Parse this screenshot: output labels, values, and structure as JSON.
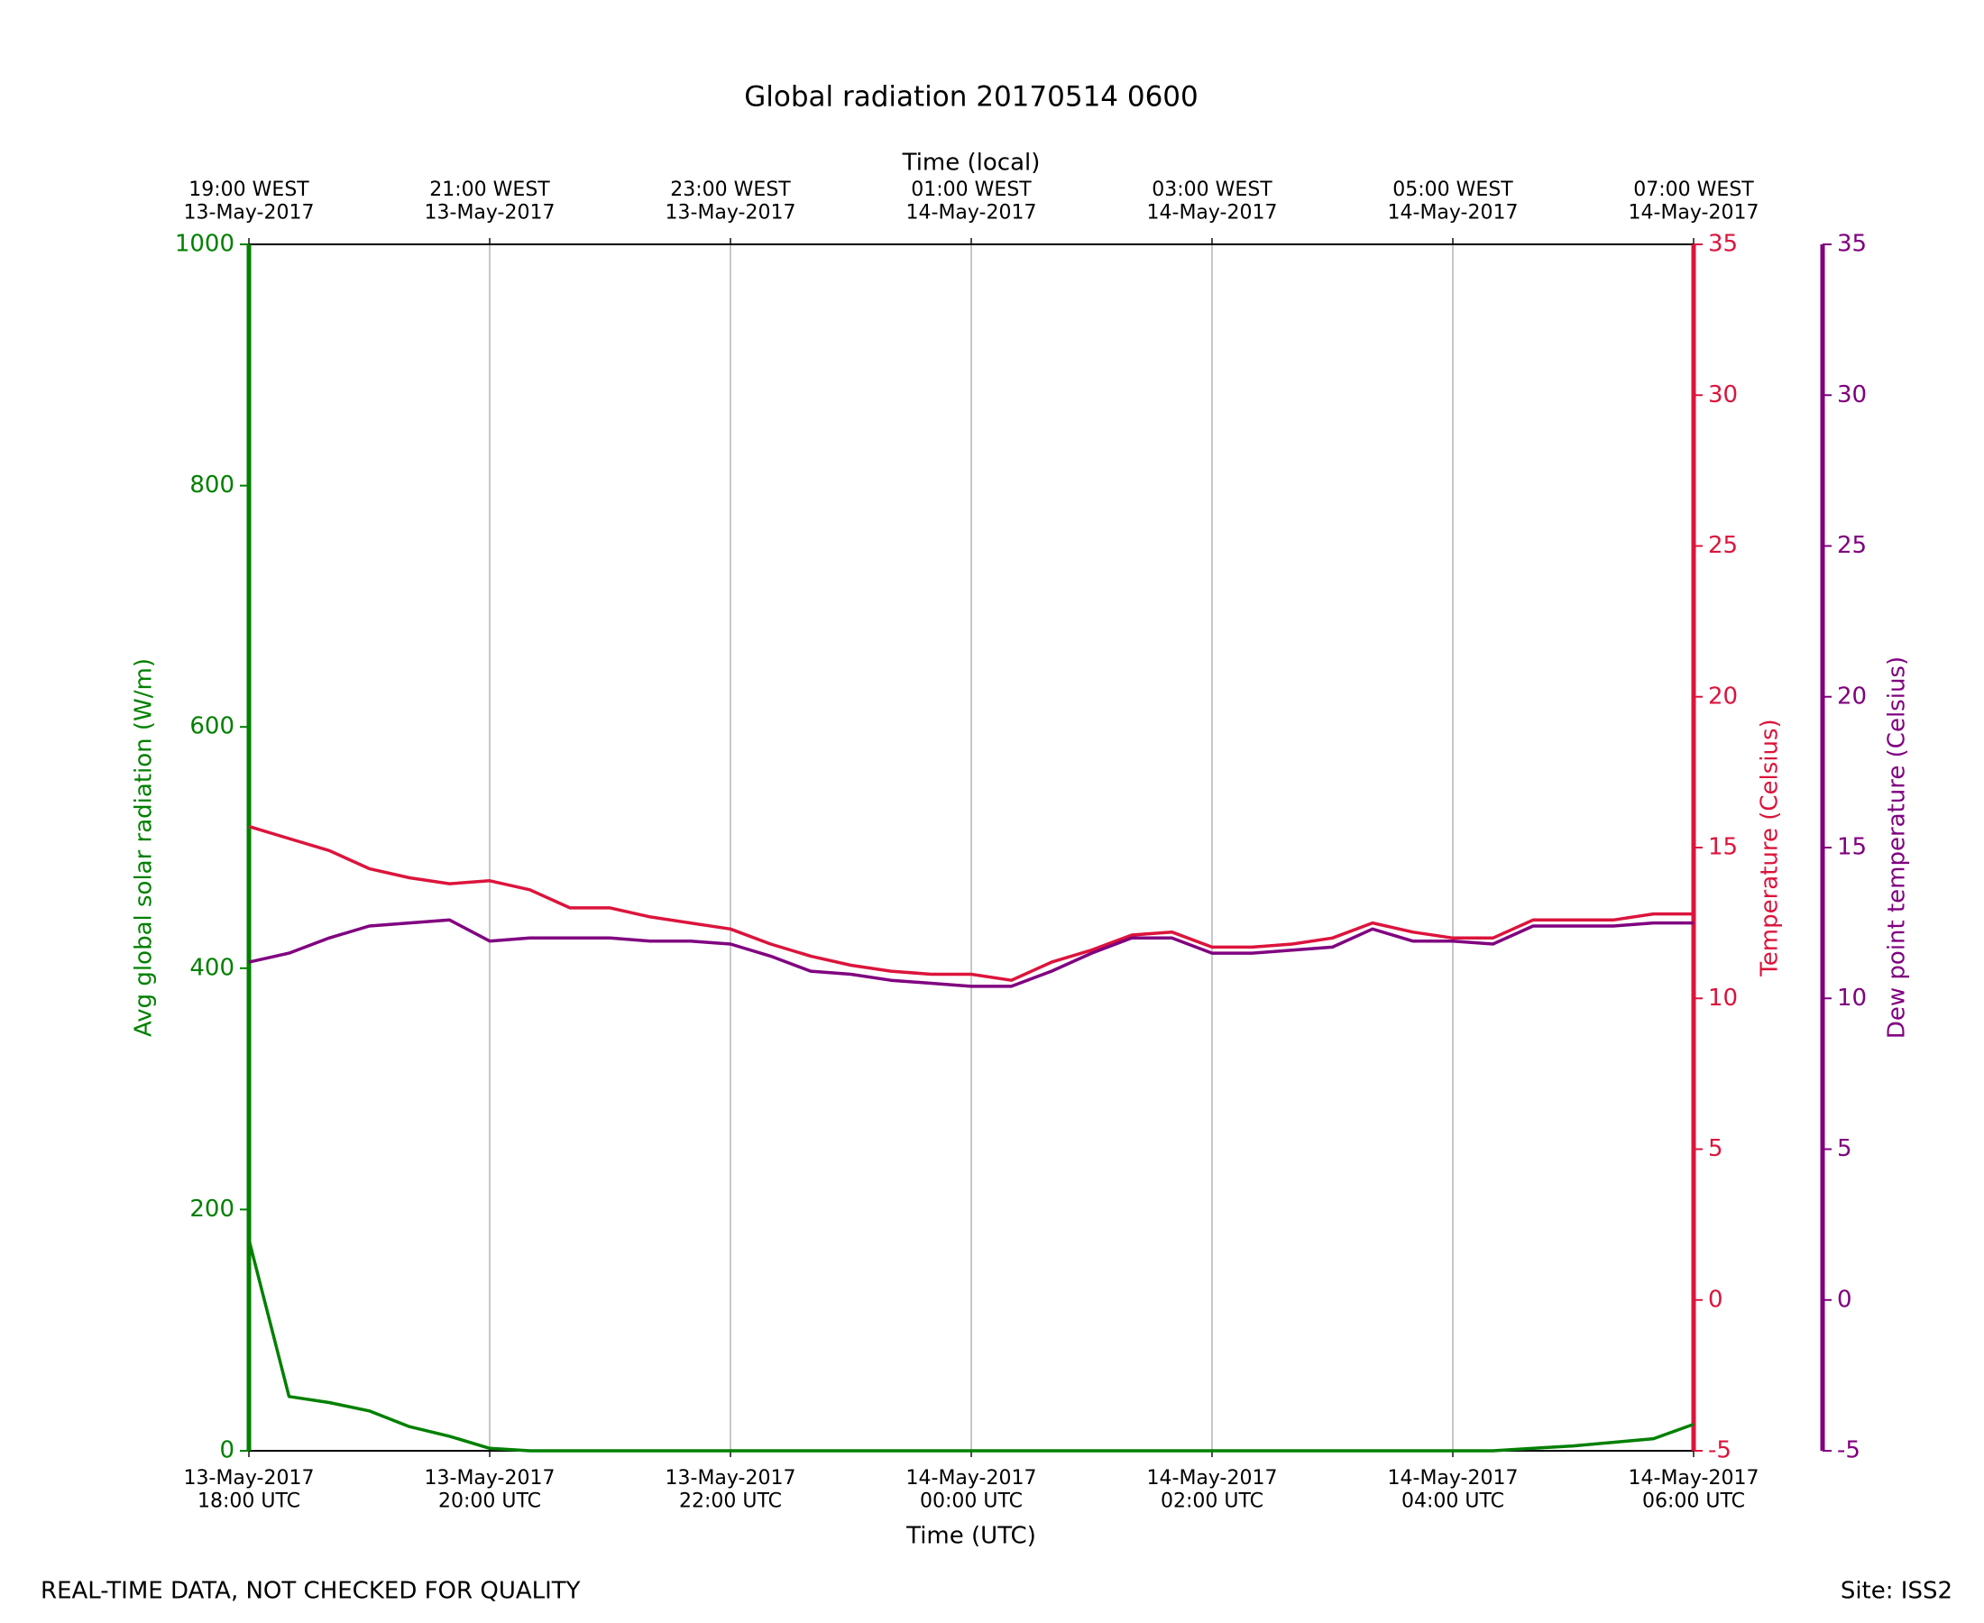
{
  "chart_data": {
    "type": "line",
    "title": "Global radiation 20170514 0600",
    "xlabel": "Time (UTC)",
    "x2label": "Time (local)",
    "ylabel": "Avg global solar radiation (W/m)",
    "y2label": "Temperature (Celsius)",
    "y3label": "Dew point temperature (Celsius)",
    "footer_left": "REAL-TIME DATA, NOT CHECKED FOR QUALITY",
    "footer_right": "Site: ISS2",
    "grid": true,
    "xlim": [
      "2017-05-13T18:00",
      "2017-05-14T06:00"
    ],
    "xticks": [
      {
        "value": "2017-05-13T18:00",
        "label": "13-May-2017\n18:00 UTC"
      },
      {
        "value": "2017-05-13T20:00",
        "label": "13-May-2017\n20:00 UTC"
      },
      {
        "value": "2017-05-13T22:00",
        "label": "13-May-2017\n22:00 UTC"
      },
      {
        "value": "2017-05-14T00:00",
        "label": "14-May-2017\n00:00 UTC"
      },
      {
        "value": "2017-05-14T02:00",
        "label": "14-May-2017\n02:00 UTC"
      },
      {
        "value": "2017-05-14T04:00",
        "label": "14-May-2017\n04:00 UTC"
      },
      {
        "value": "2017-05-14T06:00",
        "label": "14-May-2017\n06:00 UTC"
      }
    ],
    "x2ticks": [
      {
        "value": "2017-05-13T18:00",
        "label": "19:00 WEST\n13-May-2017"
      },
      {
        "value": "2017-05-13T20:00",
        "label": "21:00 WEST\n13-May-2017"
      },
      {
        "value": "2017-05-13T22:00",
        "label": "23:00 WEST\n13-May-2017"
      },
      {
        "value": "2017-05-14T00:00",
        "label": "01:00 WEST\n14-May-2017"
      },
      {
        "value": "2017-05-14T02:00",
        "label": "03:00 WEST\n14-May-2017"
      },
      {
        "value": "2017-05-14T04:00",
        "label": "05:00 WEST\n14-May-2017"
      },
      {
        "value": "2017-05-14T06:00",
        "label": "07:00 WEST\n14-May-2017"
      }
    ],
    "ylim": [
      0,
      1000
    ],
    "yticks": [
      0,
      200,
      400,
      600,
      800,
      1000
    ],
    "y2lim": [
      -5,
      35
    ],
    "y2ticks": [
      -5,
      0,
      5,
      10,
      15,
      20,
      25,
      30,
      35
    ],
    "y3lim": [
      -5,
      35
    ],
    "y3ticks": [
      -5,
      0,
      5,
      10,
      15,
      20,
      25,
      30,
      35
    ],
    "x": [
      "2017-05-13T18:00",
      "2017-05-13T18:20",
      "2017-05-13T18:40",
      "2017-05-13T19:00",
      "2017-05-13T19:20",
      "2017-05-13T19:40",
      "2017-05-13T20:00",
      "2017-05-13T20:20",
      "2017-05-13T20:40",
      "2017-05-13T21:00",
      "2017-05-13T21:20",
      "2017-05-13T21:40",
      "2017-05-13T22:00",
      "2017-05-13T22:20",
      "2017-05-13T22:40",
      "2017-05-13T23:00",
      "2017-05-13T23:20",
      "2017-05-13T23:40",
      "2017-05-14T00:00",
      "2017-05-14T00:20",
      "2017-05-14T00:40",
      "2017-05-14T01:00",
      "2017-05-14T01:20",
      "2017-05-14T01:40",
      "2017-05-14T02:00",
      "2017-05-14T02:20",
      "2017-05-14T02:40",
      "2017-05-14T03:00",
      "2017-05-14T03:20",
      "2017-05-14T03:40",
      "2017-05-14T04:00",
      "2017-05-14T04:20",
      "2017-05-14T04:40",
      "2017-05-14T05:00",
      "2017-05-14T05:20",
      "2017-05-14T05:40",
      "2017-05-14T06:00"
    ],
    "series": [
      {
        "name": "Avg global solar radiation",
        "color": "#008000",
        "axis": "y",
        "values": [
          175,
          45,
          40,
          33,
          20,
          12,
          2,
          0,
          0,
          0,
          0,
          0,
          0,
          0,
          0,
          0,
          0,
          0,
          0,
          0,
          0,
          0,
          0,
          0,
          0,
          0,
          0,
          0,
          0,
          0,
          0,
          0,
          2,
          4,
          7,
          10,
          22
        ]
      },
      {
        "name": "Temperature",
        "color": "#dc143c",
        "axis": "y2",
        "values": [
          15.7,
          15.3,
          14.9,
          14.3,
          14.0,
          13.8,
          13.9,
          13.6,
          13.0,
          13.0,
          12.7,
          12.5,
          12.3,
          11.8,
          11.4,
          11.1,
          10.9,
          10.8,
          10.8,
          10.6,
          11.2,
          11.6,
          12.1,
          12.2,
          11.7,
          11.7,
          11.8,
          12.0,
          12.5,
          12.2,
          12.0,
          12.0,
          12.6,
          12.6,
          12.6,
          12.8,
          12.8
        ]
      },
      {
        "name": "Dew point temperature",
        "color": "#800080",
        "axis": "y3",
        "values": [
          11.2,
          11.5,
          12.0,
          12.4,
          12.5,
          12.6,
          11.9,
          12.0,
          12.0,
          12.0,
          11.9,
          11.9,
          11.8,
          11.4,
          10.9,
          10.8,
          10.6,
          10.5,
          10.4,
          10.4,
          10.9,
          11.5,
          12.0,
          12.0,
          11.5,
          11.5,
          11.6,
          11.7,
          12.3,
          11.9,
          11.9,
          11.8,
          12.4,
          12.4,
          12.4,
          12.5,
          12.5
        ]
      }
    ]
  }
}
